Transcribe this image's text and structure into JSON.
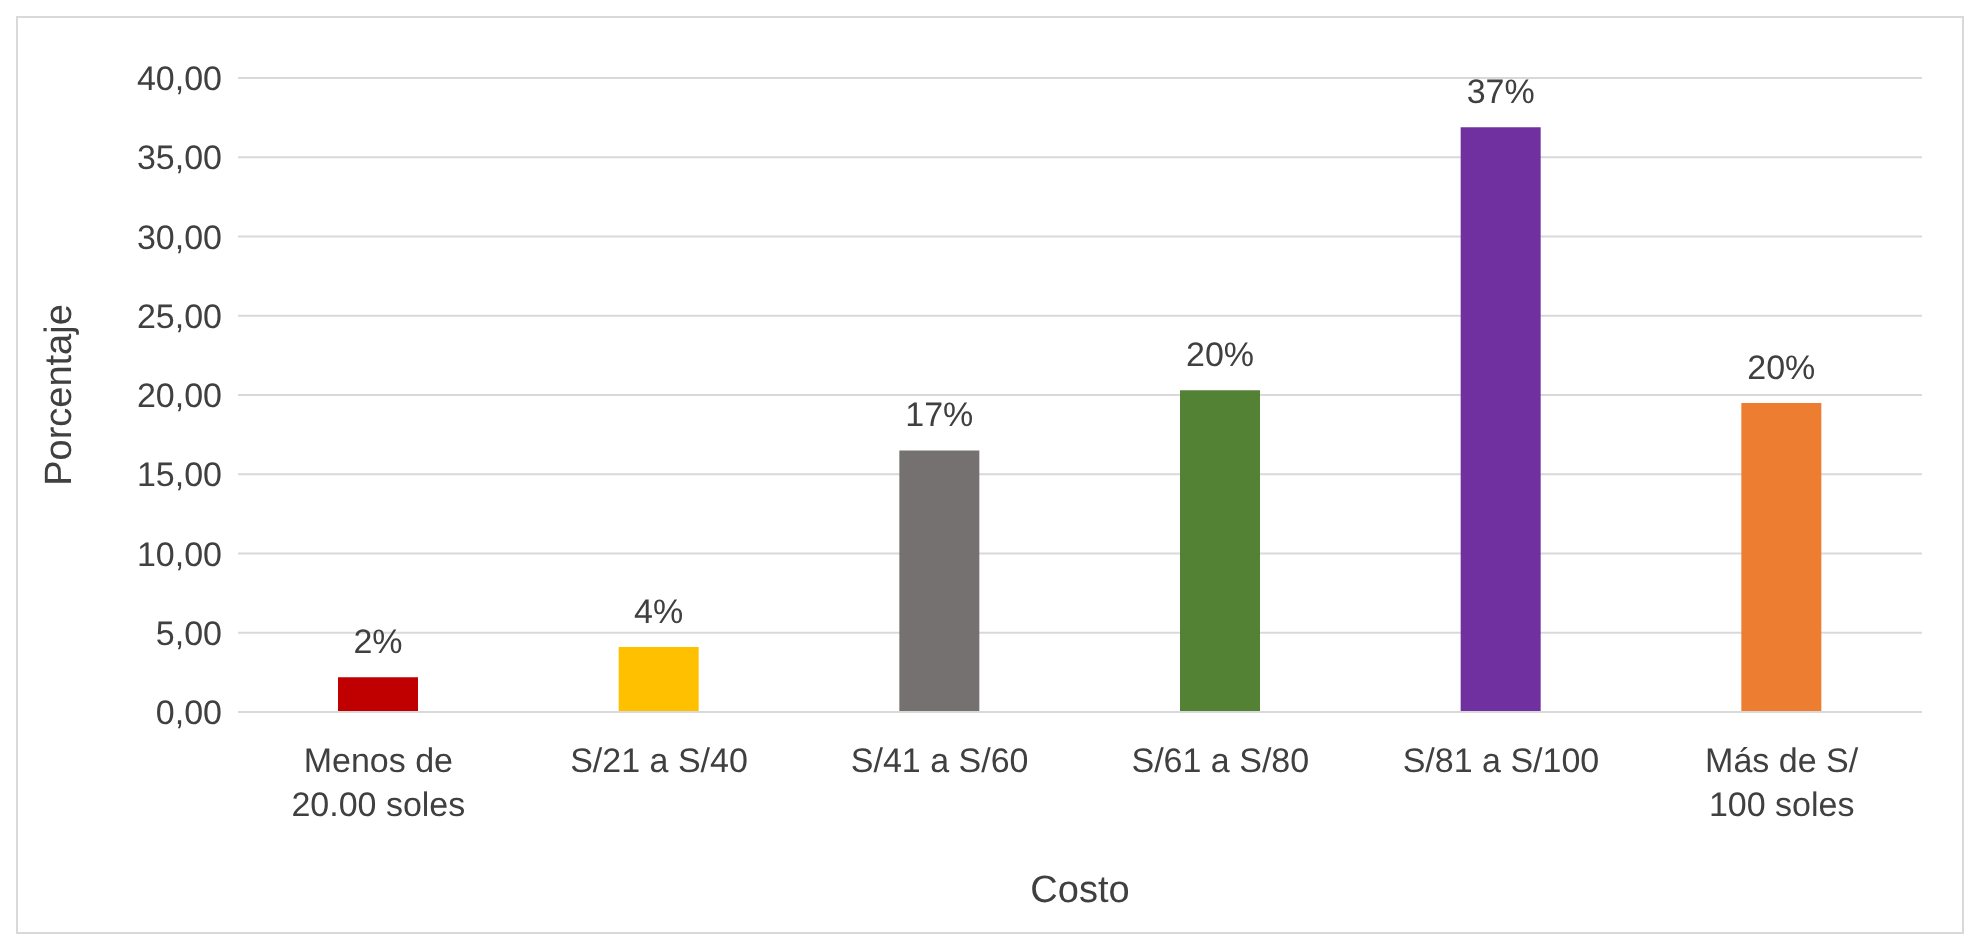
{
  "chart_data": {
    "type": "bar",
    "xlabel": "Costo",
    "ylabel": "Porcentaje",
    "categories": [
      "Menos de 20.00 soles",
      "S/21 a S/40",
      "S/41 a S/60",
      "S/61 a S/80",
      "S/81 a S/100",
      "Más de S/ 100 soles"
    ],
    "values": [
      2.2,
      4.1,
      16.5,
      20.3,
      36.9,
      19.5
    ],
    "colors": [
      "#c00000",
      "#ffc000",
      "#767171",
      "#548235",
      "#7030a0",
      "#ed7d31"
    ],
    "value_labels": [
      "2%",
      "4%",
      "17%",
      "20%",
      "37%",
      "20%"
    ],
    "ylim": [
      0,
      40
    ],
    "yticks": [
      {
        "value": 0,
        "label": "0,00"
      },
      {
        "value": 5,
        "label": "5,00"
      },
      {
        "value": 10,
        "label": "10,00"
      },
      {
        "value": 15,
        "label": "15,00"
      },
      {
        "value": 20,
        "label": "20,00"
      },
      {
        "value": 25,
        "label": "25,00"
      },
      {
        "value": 30,
        "label": "30,00"
      },
      {
        "value": 35,
        "label": "35,00"
      },
      {
        "value": 40,
        "label": "40,00"
      }
    ],
    "grid": "y"
  }
}
